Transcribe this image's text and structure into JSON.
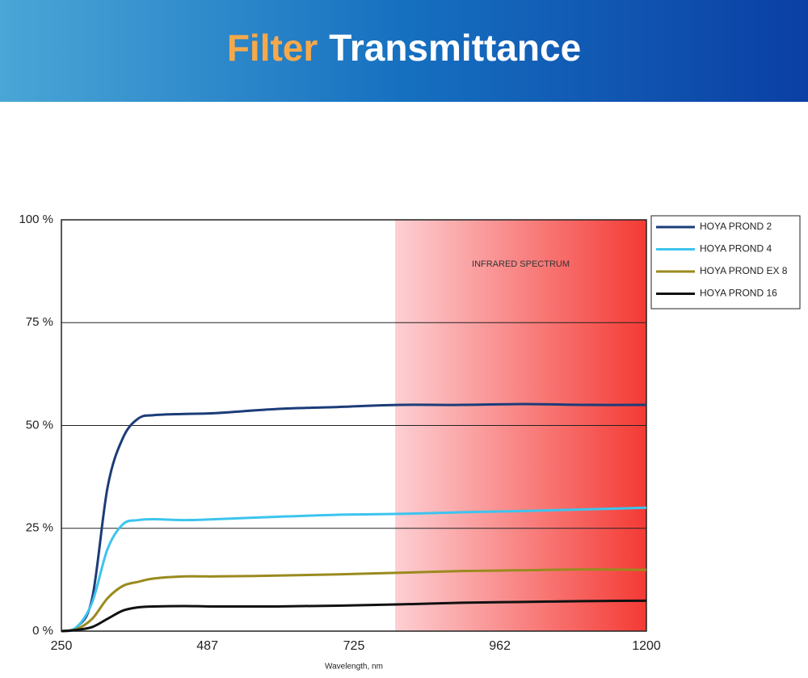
{
  "chart_data": {
    "type": "line",
    "title": [
      "Filter",
      "Transmittance"
    ],
    "x_label": "Wavelength, nm",
    "x": [
      250,
      275,
      300,
      325,
      350,
      375,
      400,
      450,
      500,
      600,
      700,
      800,
      900,
      1000,
      1100,
      1200
    ],
    "series": [
      {
        "name": "HOYA PROND 2",
        "color": "#1c3c78",
        "values": [
          0,
          1,
          8,
          35,
          47,
          51.7,
          52.5,
          52.8,
          53,
          54,
          54.5,
          55,
          55,
          55.2,
          55,
          55
        ]
      },
      {
        "name": "HOYA PROND 4",
        "color": "#3cc4ee",
        "values": [
          0,
          1,
          7,
          20,
          26,
          27,
          27.2,
          27,
          27.2,
          27.8,
          28.3,
          28.5,
          28.9,
          29.2,
          29.6,
          30
        ]
      },
      {
        "name": "HOYA PROND EX 8",
        "color": "#9a8a1e",
        "values": [
          0,
          0.5,
          3,
          8,
          11,
          12,
          12.8,
          13.3,
          13.3,
          13.5,
          13.8,
          14.2,
          14.6,
          14.8,
          15,
          14.9
        ]
      },
      {
        "name": "HOYA PROND 16",
        "color": "#111111",
        "values": [
          0,
          0.3,
          1,
          3,
          5,
          5.8,
          6,
          6.1,
          6,
          6,
          6.2,
          6.5,
          6.9,
          7.1,
          7.3,
          7.4
        ]
      }
    ],
    "xlim": [
      250,
      1200
    ],
    "xticks": [
      250,
      487,
      725,
      962,
      1200
    ],
    "ylim": [
      0,
      100
    ],
    "yticks": [
      {
        "value": 0,
        "label": "0 %"
      },
      {
        "value": 25,
        "label": "25 %"
      },
      {
        "value": 50,
        "label": "50 %"
      },
      {
        "value": 75,
        "label": "75 %"
      },
      {
        "value": 100,
        "label": "100 %"
      }
    ],
    "grid": true,
    "legend": "outside-right-top",
    "shaded_region": {
      "x": [
        792,
        1200
      ],
      "label": "INFRARED SPECTRUM"
    }
  }
}
